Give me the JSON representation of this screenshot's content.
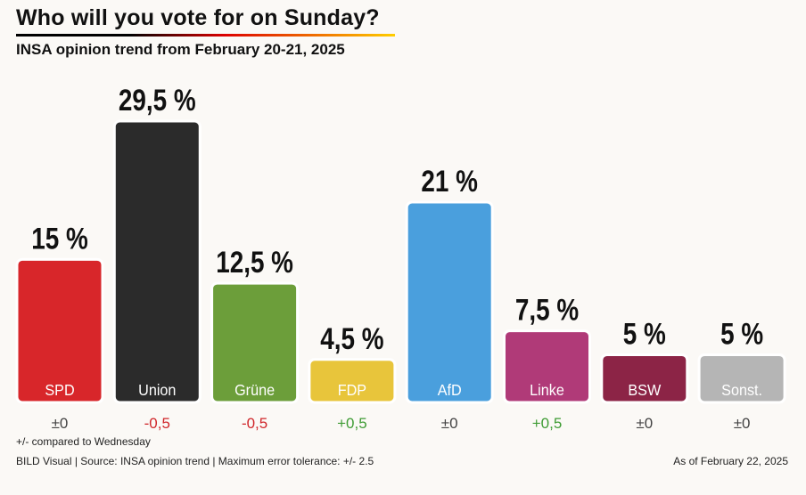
{
  "header": {
    "title": "Who will you vote for on Sunday?",
    "subtitle": "INSA opinion trend from February 20-21, 2025"
  },
  "chart_data": {
    "type": "bar",
    "categories": [
      "SPD",
      "Union",
      "Grüne",
      "FDP",
      "AfD",
      "Linke",
      "BSW",
      "Sonst."
    ],
    "values": [
      15,
      29.5,
      12.5,
      4.5,
      21,
      7.5,
      5,
      5
    ],
    "value_labels": [
      "15 %",
      "29,5 %",
      "12,5 %",
      "4,5 %",
      "21 %",
      "7,5 %",
      "5 %",
      "5 %"
    ],
    "changes": [
      "±0",
      "-0,5",
      "-0,5",
      "+0,5",
      "±0",
      "+0,5",
      "±0",
      "±0"
    ],
    "colors": [
      "#d8262a",
      "#2b2b2b",
      "#6c9e3a",
      "#e8c53b",
      "#4a9fdd",
      "#b03a78",
      "#8c2446",
      "#b5b5b5"
    ],
    "change_colors": {
      "neutral": "#444444",
      "negative": "#d0262a",
      "positive": "#3f9c35"
    },
    "ylim": [
      0,
      30
    ],
    "grid": false,
    "legend": "none"
  },
  "notes": {
    "comparison": "+/- compared to Wednesday",
    "source": "BILD Visual | Source: INSA opinion trend | Maximum error tolerance: +/- 2.5",
    "date": "As of February 22, 2025"
  }
}
